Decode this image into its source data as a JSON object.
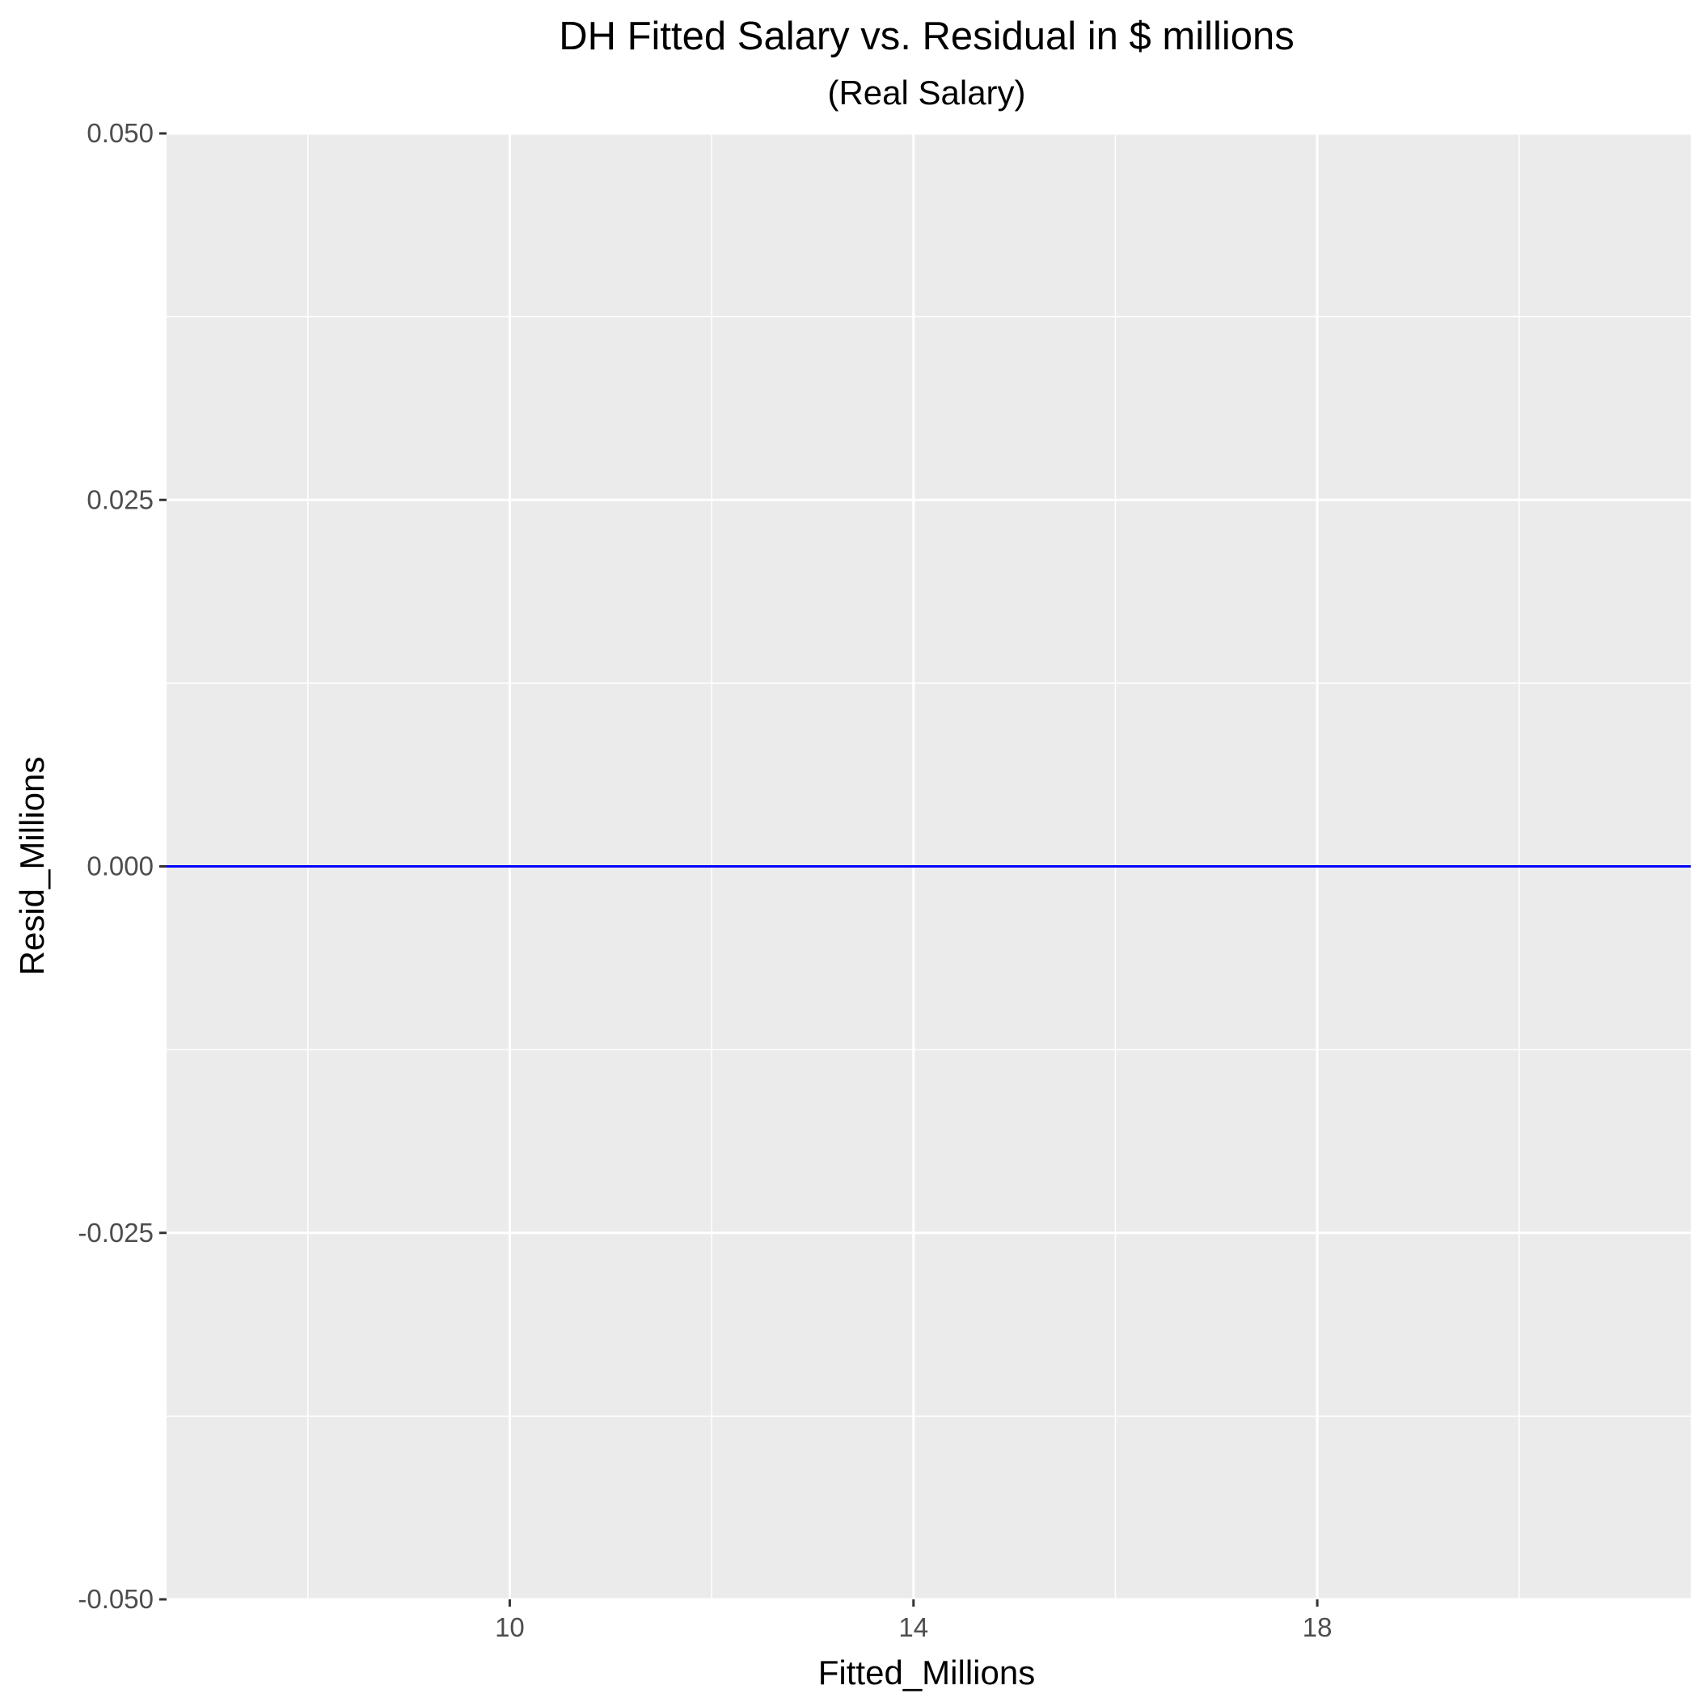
{
  "chart_data": {
    "type": "line",
    "title": "DH Fitted Salary vs. Residual in $ millions",
    "subtitle": "(Real Salary)",
    "xlabel": "Fitted_Millions",
    "ylabel": "Resid_Millions",
    "xlim": [
      6.6,
      21.7
    ],
    "ylim": [
      -0.05,
      0.05
    ],
    "x_ticks": [
      10,
      14,
      18
    ],
    "x_tick_labels": [
      "10",
      "14",
      "18"
    ],
    "x_minor_ticks": [
      8,
      12,
      16,
      20
    ],
    "y_ticks": [
      -0.05,
      -0.025,
      0,
      0.025,
      0.05
    ],
    "y_tick_labels": [
      "-0.050",
      "-0.025",
      "0.000",
      "0.025",
      "0.050"
    ],
    "y_minor_ticks": [
      -0.0375,
      -0.0125,
      0.0125,
      0.0375
    ],
    "grid": true,
    "reference_line": {
      "y": 0,
      "color": "#0000ff"
    },
    "series": [],
    "colors": {
      "panel": "#ebebeb",
      "grid": "#ffffff",
      "tick_text": "#4d4d4d"
    }
  }
}
